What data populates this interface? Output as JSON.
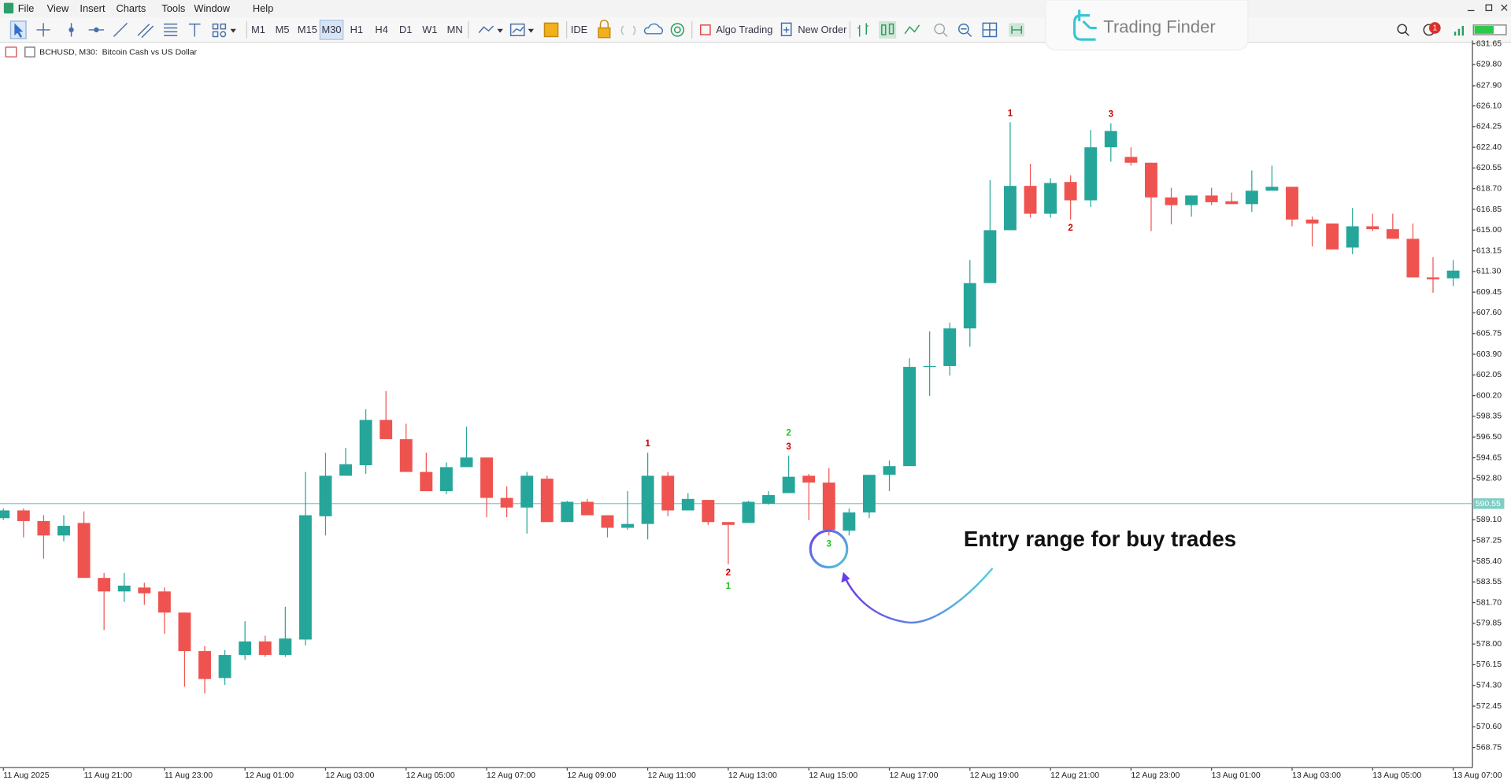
{
  "menu": [
    "File",
    "View",
    "Insert",
    "Charts",
    "Tools",
    "Window",
    "Help"
  ],
  "toolbar": {
    "timeframes": [
      "M1",
      "M5",
      "M15",
      "M30",
      "H1",
      "H4",
      "D1",
      "W1",
      "MN"
    ],
    "active_timeframe": 3,
    "buttons": [
      "IDE",
      "Algo Trading",
      "New Order"
    ],
    "notification_count": "1"
  },
  "logo": "Trading Finder",
  "chart_data": {
    "type": "candlestick",
    "title": "BCHUSD, M30:  Bitcoin Cash vs US Dollar",
    "up_color": "#26a69a",
    "down_color": "#ef5350",
    "categories": [
      "11 Aug 2025",
      null,
      null,
      null,
      "11 Aug 21:00",
      null,
      null,
      null,
      "11 Aug 23:00",
      null,
      null,
      null,
      "12 Aug 01:00",
      null,
      null,
      null,
      "12 Aug 03:00",
      null,
      null,
      null,
      "12 Aug 05:00",
      null,
      null,
      null,
      "12 Aug 07:00",
      null,
      null,
      null,
      "12 Aug 09:00",
      null,
      null,
      null,
      "12 Aug 11:00",
      null,
      null,
      null,
      "12 Aug 13:00",
      null,
      null,
      null,
      "12 Aug 15:00",
      null,
      null,
      null,
      "12 Aug 17:00",
      null,
      null,
      null,
      "12 Aug 19:00",
      null,
      null,
      null,
      "12 Aug 21:00",
      null,
      null,
      null,
      "12 Aug 23:00",
      null,
      null,
      null,
      "13 Aug 01:00",
      null,
      null,
      null,
      "13 Aug 03:00",
      null,
      null,
      null,
      "13 Aug 05:00",
      null,
      null,
      null,
      "13 Aug 07:00"
    ],
    "open": [
      589.25,
      589.94,
      588.99,
      587.7,
      588.82,
      583.91,
      582.7,
      583.05,
      582.7,
      580.81,
      577.37,
      574.96,
      577.02,
      578.23,
      577.02,
      578.4,
      589.42,
      593.04,
      593.98,
      598.03,
      596.31,
      593.38,
      591.66,
      593.81,
      594.67,
      591.06,
      590.2,
      592.78,
      588.9,
      590.71,
      589.51,
      588.39,
      588.73,
      593.04,
      589.94,
      590.88,
      588.9,
      588.82,
      590.54,
      591.49,
      593.04,
      592.43,
      588.13,
      589.76,
      593.12,
      593.9,
      602.77,
      602.85,
      606.21,
      610.26,
      614.99,
      618.95,
      616.46,
      619.3,
      617.66,
      622.4,
      621.54,
      621.02,
      617.92,
      617.23,
      618.09,
      617.58,
      617.32,
      618.52,
      618.87,
      615.94,
      615.59,
      613.44,
      615.34,
      615.08,
      614.22,
      610.77,
      610.69
    ],
    "high": [
      590.11,
      590.11,
      589.51,
      589.51,
      589.85,
      584.34,
      584.34,
      583.48,
      583.05,
      580.81,
      577.8,
      577.45,
      580.04,
      578.74,
      581.33,
      593.38,
      595.1,
      595.53,
      598.98,
      600.61,
      597.69,
      595.1,
      594.24,
      597.43,
      594.67,
      592.09,
      593.38,
      593.04,
      590.8,
      590.97,
      589.51,
      591.66,
      595.1,
      593.38,
      591.49,
      590.88,
      588.9,
      590.8,
      591.66,
      594.84,
      593.21,
      593.73,
      590.11,
      593.12,
      594.41,
      603.54,
      605.95,
      606.73,
      612.32,
      619.47,
      624.64,
      620.93,
      619.64,
      619.9,
      623.95,
      624.55,
      622.4,
      621.02,
      618.78,
      618.09,
      618.78,
      618.35,
      620.33,
      620.76,
      618.87,
      616.2,
      615.59,
      616.97,
      616.46,
      616.46,
      615.59,
      612.58,
      612.32
    ],
    "low": [
      589.08,
      587.53,
      585.63,
      587.18,
      583.91,
      579.26,
      581.76,
      581.5,
      578.92,
      574.18,
      573.58,
      574.35,
      576.59,
      576.85,
      576.85,
      577.88,
      587.7,
      593.04,
      593.21,
      596.31,
      593.38,
      591.66,
      591.4,
      593.81,
      589.33,
      589.33,
      587.87,
      588.9,
      588.9,
      589.51,
      587.53,
      588.21,
      587.35,
      589.42,
      589.94,
      588.65,
      585.12,
      588.82,
      590.45,
      591.49,
      589.08,
      587.7,
      587.7,
      589.25,
      591.66,
      593.9,
      600.18,
      601.99,
      604.57,
      610.26,
      614.99,
      616.11,
      616.11,
      615.94,
      617.06,
      621.11,
      620.76,
      614.91,
      615.51,
      616.2,
      617.23,
      617.32,
      616.63,
      618.52,
      615.34,
      613.53,
      613.27,
      612.84,
      614.91,
      614.22,
      610.77,
      609.4,
      610.0
    ],
    "close": [
      589.94,
      588.99,
      587.7,
      588.56,
      583.91,
      582.7,
      583.22,
      582.53,
      580.81,
      577.37,
      574.87,
      577.02,
      578.23,
      577.02,
      578.49,
      589.51,
      593.04,
      594.07,
      598.03,
      596.31,
      593.38,
      591.66,
      593.81,
      594.67,
      591.06,
      590.2,
      593.04,
      588.9,
      590.71,
      589.51,
      588.39,
      588.73,
      593.04,
      589.94,
      590.97,
      588.9,
      588.65,
      590.71,
      591.31,
      592.95,
      592.43,
      588.21,
      589.76,
      593.12,
      593.9,
      602.77,
      602.85,
      606.21,
      610.26,
      614.99,
      618.95,
      616.46,
      619.21,
      617.66,
      622.4,
      623.86,
      621.02,
      617.92,
      617.23,
      618.09,
      617.49,
      617.32,
      618.52,
      618.87,
      615.94,
      615.59,
      613.27,
      615.34,
      615.08,
      614.22,
      610.77,
      610.6,
      611.38
    ],
    "ylim": [
      566.95,
      631.95
    ],
    "yticks": [
      631.65,
      {
        "value": 629.8,
        "label": "629.80"
      },
      {
        "value": 627.9,
        "label": "627.90"
      },
      {
        "value": 626.1,
        "label": "626.10"
      },
      624.25,
      {
        "value": 622.4,
        "label": "622.40"
      },
      620.55,
      {
        "value": 618.7,
        "label": "618.70"
      },
      616.85,
      {
        "value": 615,
        "label": "615.00"
      },
      613.15,
      {
        "value": 611.3,
        "label": "611.30"
      },
      609.45,
      {
        "value": 607.6,
        "label": "607.60"
      },
      605.75,
      {
        "value": 603.9,
        "label": "603.90"
      },
      602.05,
      {
        "value": 600.2,
        "label": "600.20"
      },
      598.35,
      {
        "value": 596.5,
        "label": "596.50"
      },
      594.65,
      {
        "value": 592.8,
        "label": "592.80"
      },
      {
        "value": 589.1,
        "label": "589.10"
      },
      587.25,
      {
        "value": 585.4,
        "label": "585.40"
      },
      583.55,
      {
        "value": 581.7,
        "label": "581.70"
      },
      579.85,
      {
        "value": 578,
        "label": "578.00"
      },
      576.15,
      {
        "value": 574.3,
        "label": "574.30"
      },
      572.45,
      {
        "value": 570.6,
        "label": "570.60"
      },
      568.75
    ],
    "grid": false,
    "current_price": 590.55,
    "current_price_color": "#7fcdc4",
    "signals": [
      {
        "candle": 32,
        "position": "above",
        "labels": [
          {
            "text": "1",
            "color": "#d00000"
          }
        ]
      },
      {
        "candle": 36,
        "position": "below",
        "labels": [
          {
            "text": "2",
            "color": "#d00000"
          },
          {
            "text": "1",
            "color": "#22c422"
          }
        ]
      },
      {
        "candle": 39,
        "position": "above",
        "labels": [
          {
            "text": "2",
            "color": "#22c422"
          },
          {
            "text": "3",
            "color": "#d00000"
          }
        ]
      },
      {
        "candle": 41,
        "position": "below",
        "labels": [
          {
            "text": "3",
            "color": "#22c422"
          }
        ]
      },
      {
        "candle": 50,
        "position": "above",
        "labels": [
          {
            "text": "1",
            "color": "#d00000"
          }
        ]
      },
      {
        "candle": 53,
        "position": "below",
        "labels": [
          {
            "text": "2",
            "color": "#d00000"
          }
        ]
      },
      {
        "candle": 55,
        "position": "above",
        "labels": [
          {
            "text": "3",
            "color": "#d00000"
          }
        ]
      }
    ],
    "annotation": "Entry range for buy trades"
  }
}
